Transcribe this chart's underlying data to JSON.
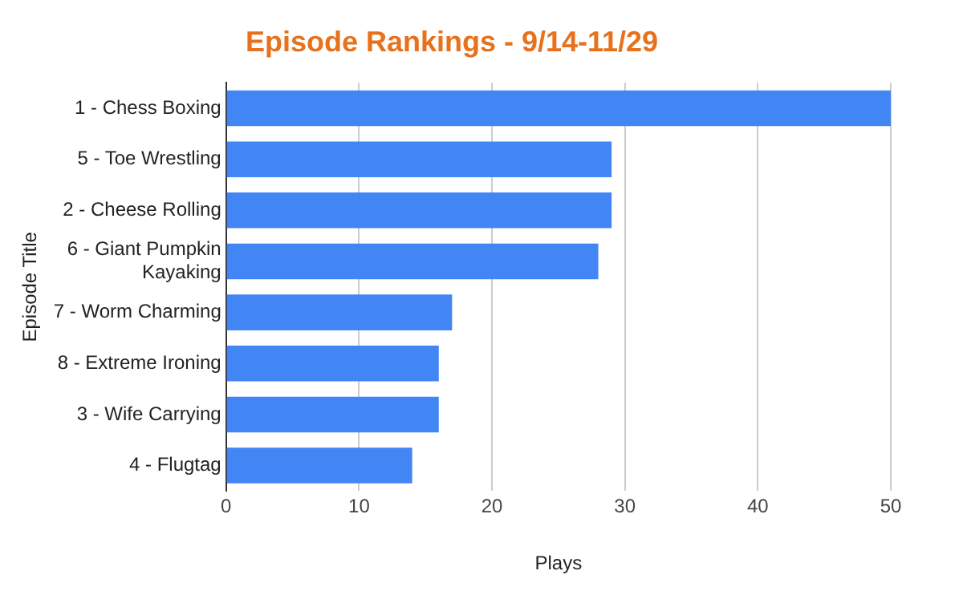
{
  "chart_data": {
    "type": "bar",
    "orientation": "horizontal",
    "title": "Episode Rankings - 9/14-11/29",
    "xlabel": "Plays",
    "ylabel": "Episode Title",
    "categories": [
      "1 - Chess Boxing",
      "5 - Toe Wrestling",
      "2 - Cheese Rolling",
      "6 - Giant Pumpkin Kayaking",
      "7 - Worm Charming",
      "8 - Extreme Ironing",
      "3 - Wife Carrying",
      "4 - Flugtag"
    ],
    "values": [
      50,
      29,
      29,
      28,
      17,
      16,
      16,
      14
    ],
    "color": "#4285f4",
    "xlim": [
      0,
      50
    ],
    "xticks": [
      0,
      10,
      20,
      30,
      40,
      50
    ],
    "grid": "x",
    "legend": false
  }
}
